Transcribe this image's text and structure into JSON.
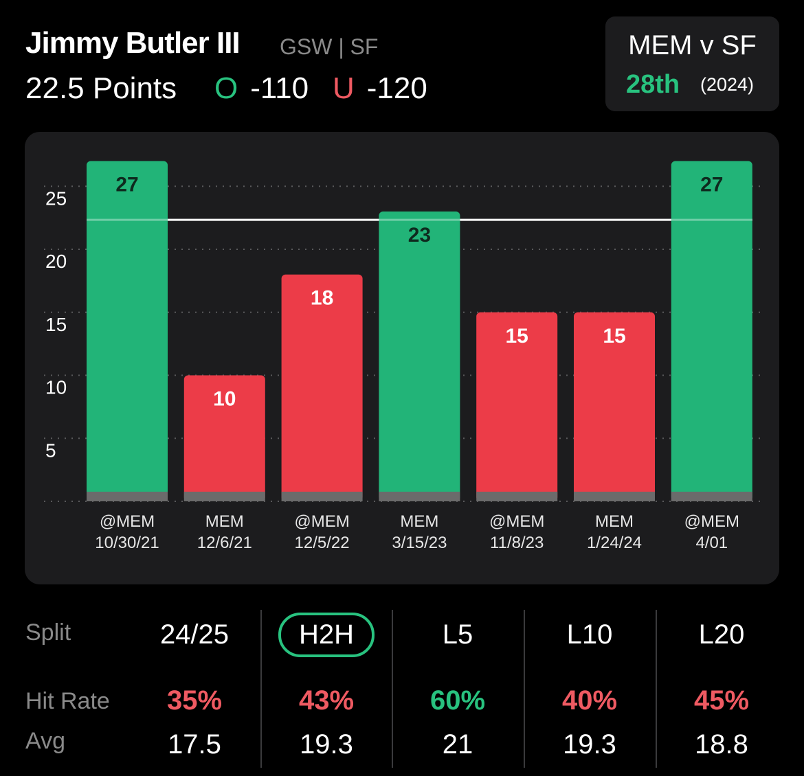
{
  "header": {
    "player_name": "Jimmy Butler III",
    "team_info": "GSW | SF",
    "prop_line": "22.5 Points",
    "over_tag": "O",
    "over_odds": "-110",
    "under_tag": "U",
    "under_odds": "-120"
  },
  "matchup": {
    "title": "MEM v SF",
    "rank": "28th",
    "season": "(2024)"
  },
  "colors": {
    "over": "#22b478",
    "under": "#ec3c48",
    "background": "#000000",
    "card": "#1c1c1e",
    "muted": "#8a8a8a"
  },
  "chart_data": {
    "type": "bar",
    "categories": [
      [
        "@MEM",
        "10/30/21"
      ],
      [
        "MEM",
        "12/6/21"
      ],
      [
        "@MEM",
        "12/5/22"
      ],
      [
        "MEM",
        "3/15/23"
      ],
      [
        "@MEM",
        "11/8/23"
      ],
      [
        "MEM",
        "1/24/24"
      ],
      [
        "@MEM",
        "4/01"
      ]
    ],
    "values": [
      27,
      10,
      18,
      23,
      15,
      15,
      27
    ],
    "labels": [
      "27",
      "10",
      "18",
      "23",
      "15",
      "15",
      "27"
    ],
    "results": [
      "over",
      "under",
      "under",
      "over",
      "under",
      "under",
      "over"
    ],
    "line": 22.5,
    "yticks": [
      5,
      10,
      15,
      20,
      25
    ],
    "ylim": [
      0,
      27
    ]
  },
  "stats": {
    "row_labels": {
      "split": "Split",
      "hit_rate": "Hit Rate",
      "avg": "Avg"
    },
    "columns": [
      {
        "split": "24/25",
        "hit_rate": "35%",
        "hit_status": "under",
        "avg": "17.5",
        "active": false
      },
      {
        "split": "H2H",
        "hit_rate": "43%",
        "hit_status": "under",
        "avg": "19.3",
        "active": true
      },
      {
        "split": "L5",
        "hit_rate": "60%",
        "hit_status": "over",
        "avg": "21",
        "active": false
      },
      {
        "split": "L10",
        "hit_rate": "40%",
        "hit_status": "under",
        "avg": "19.3",
        "active": false
      },
      {
        "split": "L20",
        "hit_rate": "45%",
        "hit_status": "under",
        "avg": "18.8",
        "active": false
      }
    ]
  }
}
